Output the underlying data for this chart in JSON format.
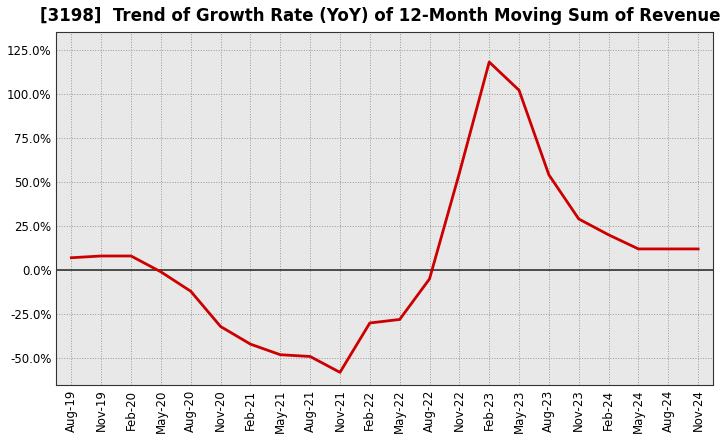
{
  "title": "[3198]  Trend of Growth Rate (YoY) of 12-Month Moving Sum of Revenues",
  "x_labels": [
    "Aug-19",
    "Nov-19",
    "Feb-20",
    "May-20",
    "Aug-20",
    "Nov-20",
    "Feb-21",
    "May-21",
    "Aug-21",
    "Nov-21",
    "Feb-22",
    "May-22",
    "Aug-22",
    "Nov-22",
    "Feb-23",
    "May-23",
    "Aug-23",
    "Nov-23",
    "Feb-24",
    "May-24",
    "Aug-24",
    "Nov-24"
  ],
  "x_values": [
    0,
    3,
    6,
    9,
    12,
    15,
    18,
    21,
    24,
    27,
    30,
    33,
    36,
    39,
    42,
    45,
    48,
    51,
    54,
    57,
    60,
    63
  ],
  "y_values": [
    0.07,
    0.08,
    0.08,
    -0.01,
    -0.12,
    -0.32,
    -0.42,
    -0.48,
    -0.49,
    -0.58,
    -0.3,
    -0.28,
    -0.05,
    0.55,
    1.18,
    1.02,
    0.54,
    0.29,
    0.2,
    0.12,
    0.12,
    0.12
  ],
  "line_color": "#cc0000",
  "line_width": 2.0,
  "background_color": "#ffffff",
  "plot_bg_color": "#e8e8e8",
  "grid_color": "#999999",
  "ylim": [
    -0.65,
    1.35
  ],
  "yticks": [
    -0.5,
    -0.25,
    0.0,
    0.25,
    0.5,
    0.75,
    1.0,
    1.25
  ],
  "ytick_labels": [
    "-50.0%",
    "-25.0%",
    "0.0%",
    "25.0%",
    "50.0%",
    "75.0%",
    "100.0%",
    "125.0%"
  ],
  "zero_line_color": "#333333",
  "title_fontsize": 12,
  "tick_fontsize": 8.5
}
